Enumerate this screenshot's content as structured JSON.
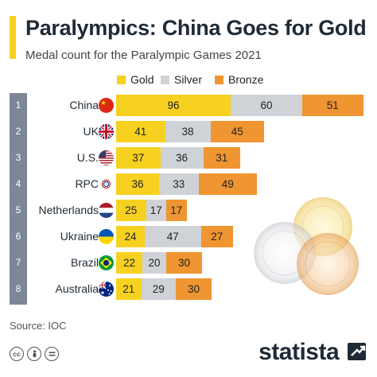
{
  "title": "Paralympics: China Goes for Gold",
  "subtitle": "Medal count for the Paralympic Games 2021",
  "source": "Source: IOC",
  "brand": "statista",
  "license_icons": [
    "cc-icon",
    "person-icon",
    "equals-icon"
  ],
  "colors": {
    "gold": "#f7d120",
    "silver": "#cfd2d6",
    "bronze": "#ef9531",
    "accent": "#f7d120",
    "rank": "#7d8797"
  },
  "chart_data": {
    "type": "bar",
    "orientation": "horizontal",
    "stacked": true,
    "title": "Paralympics: China Goes for Gold",
    "subtitle": "Medal count for the Paralympic Games 2021",
    "legend": {
      "position": "top",
      "entries": [
        "Gold",
        "Silver",
        "Bronze"
      ]
    },
    "categories": [
      "China",
      "UK",
      "U.S.",
      "RPC",
      "Netherlands",
      "Ukraine",
      "Brazil",
      "Australia"
    ],
    "ranks": [
      "1",
      "2",
      "3",
      "4",
      "5",
      "6",
      "7",
      "8"
    ],
    "flags": [
      "china-flag-icon",
      "uk-flag-icon",
      "us-flag-icon",
      "rpc-flag-icon",
      "netherlands-flag-icon",
      "ukraine-flag-icon",
      "brazil-flag-icon",
      "australia-flag-icon"
    ],
    "series": [
      {
        "name": "Gold",
        "color": "#f7d120",
        "values": [
          96,
          41,
          37,
          36,
          25,
          24,
          22,
          21
        ]
      },
      {
        "name": "Silver",
        "color": "#cfd2d6",
        "values": [
          60,
          38,
          36,
          33,
          17,
          47,
          20,
          29
        ]
      },
      {
        "name": "Bronze",
        "color": "#ef9531",
        "values": [
          51,
          45,
          31,
          49,
          17,
          27,
          30,
          30
        ]
      }
    ],
    "grid": false,
    "data_labels": true
  }
}
